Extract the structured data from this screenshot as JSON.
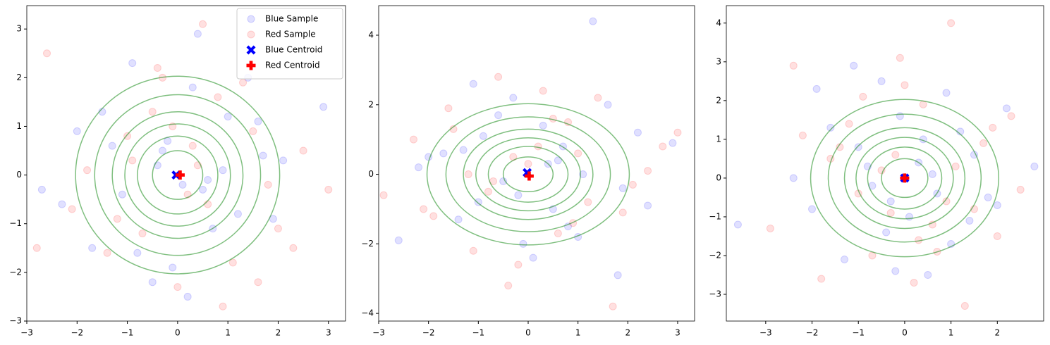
{
  "chart_data": [
    {
      "type": "scatter",
      "legend": "upper right",
      "xlim": [
        -3,
        3.34
      ],
      "ylim": [
        -3,
        3.48
      ],
      "xticks": [
        {
          "value": -3,
          "label": "−3"
        },
        {
          "value": -2,
          "label": "−2"
        },
        {
          "value": -1,
          "label": "−1"
        },
        0,
        1,
        2,
        3
      ],
      "yticks": [
        {
          "value": -3,
          "label": "−3"
        },
        {
          "value": -2,
          "label": "−2"
        },
        {
          "value": -1,
          "label": "−1"
        },
        0,
        1,
        2,
        3
      ],
      "contour_radii": [
        0.5,
        0.8,
        1.05,
        1.3,
        1.65,
        2.03
      ],
      "contour_color": "green",
      "series": [
        {
          "name": "Blue Sample",
          "color": "blue",
          "marker": "o",
          "alpha": 0.12,
          "x": [
            -0.3,
            1.2,
            -1.5,
            0.4,
            2.1,
            -0.8,
            0.1,
            -2.0,
            1.6,
            -0.5,
            0.9,
            -1.1,
            0.3,
            2.9,
            -2.3,
            0.7,
            -0.2,
            1.4,
            -1.7,
            0.5,
            -0.9,
            1.9,
            -0.4,
            0.2,
            -1.3,
            1.0,
            -2.7,
            0.6,
            -0.1,
            1.7
          ],
          "y": [
            0.5,
            -0.8,
            1.3,
            2.9,
            0.3,
            -1.6,
            -0.2,
            0.9,
            1.1,
            -2.2,
            0.1,
            -0.4,
            1.8,
            1.4,
            -0.6,
            -1.1,
            0.7,
            2.0,
            -1.5,
            -0.3,
            2.3,
            -0.9,
            0.2,
            -2.5,
            0.6,
            1.2,
            -0.3,
            -0.1,
            -1.9,
            0.4
          ]
        },
        {
          "name": "Red Sample",
          "color": "red",
          "marker": "o",
          "alpha": 0.12,
          "x": [
            0.8,
            -1.2,
            2.5,
            -0.4,
            1.1,
            -2.6,
            0.2,
            1.5,
            -0.7,
            0.5,
            -1.8,
            2.0,
            -0.1,
            3.0,
            0.9,
            -1.4,
            0.3,
            1.3,
            -0.9,
            -2.1,
            1.8,
            0.0,
            -0.5,
            2.3,
            -1.0,
            0.6,
            -0.3,
            1.6,
            -2.8,
            0.4
          ],
          "y": [
            1.6,
            -0.9,
            0.5,
            2.2,
            -1.8,
            2.5,
            -0.4,
            0.9,
            -1.2,
            3.1,
            0.1,
            -1.1,
            1.0,
            -0.3,
            -2.7,
            -1.6,
            0.6,
            1.9,
            0.3,
            -0.7,
            -0.2,
            -2.3,
            1.3,
            -1.5,
            0.8,
            -0.6,
            2.0,
            -2.2,
            -1.5,
            0.2
          ]
        },
        {
          "name": "Blue Centroid",
          "color": "blue",
          "marker": "X",
          "alpha": 1,
          "x": [
            -0.03
          ],
          "y": [
            0.0
          ]
        },
        {
          "name": "Red Centroid",
          "color": "red",
          "marker": "P",
          "alpha": 1,
          "x": [
            0.05
          ],
          "y": [
            0.0
          ]
        }
      ]
    },
    {
      "type": "scatter",
      "xlim": [
        -3,
        3.34
      ],
      "ylim": [
        -4.22,
        4.85
      ],
      "xticks": [
        {
          "value": -3,
          "label": "−3"
        },
        {
          "value": -2,
          "label": "−2"
        },
        {
          "value": -1,
          "label": "−1"
        },
        0,
        1,
        2,
        3
      ],
      "yticks": [
        {
          "value": -4,
          "label": "−4"
        },
        {
          "value": -2,
          "label": "−2"
        },
        0,
        2,
        4
      ],
      "contour_radii": [
        0.5,
        0.8,
        1.05,
        1.3,
        1.65,
        2.03
      ],
      "contour_color": "green",
      "series": [
        {
          "color": "blue",
          "marker": "o",
          "alpha": 0.12,
          "x": [
            -2.6,
            1.3,
            0.4,
            -1.0,
            2.2,
            -0.3,
            0.8,
            -1.7,
            1.9,
            -0.6,
            0.1,
            2.9,
            -2.2,
            0.5,
            -0.9,
            1.1,
            -0.2,
            1.6,
            -1.4,
            0.7,
            -0.5,
            2.4,
            -1.1,
            0.3,
            -2.0,
            1.0,
            -0.1,
            0.6,
            -1.3,
            1.8
          ],
          "y": [
            -1.9,
            4.4,
            0.3,
            -0.8,
            1.2,
            2.2,
            -1.5,
            0.6,
            -0.4,
            1.7,
            -2.4,
            0.9,
            0.2,
            -1.0,
            1.1,
            0.0,
            -0.6,
            2.0,
            -1.3,
            0.8,
            -0.2,
            -0.9,
            2.6,
            1.4,
            0.5,
            -1.8,
            -2.0,
            0.4,
            0.7,
            -2.9
          ]
        },
        {
          "color": "red",
          "marker": "o",
          "alpha": 0.12,
          "x": [
            -2.9,
            1.7,
            0.2,
            -1.5,
            2.7,
            -0.4,
            0.9,
            -2.3,
            1.4,
            -0.8,
            0.5,
            3.0,
            -1.9,
            0.0,
            -0.6,
            1.2,
            -1.1,
            2.1,
            -0.3,
            0.6,
            -1.6,
            2.4,
            -0.7,
            0.3,
            -2.1,
            1.0,
            -0.2,
            0.8,
            -1.2,
            1.9
          ],
          "y": [
            -0.6,
            -3.8,
            0.8,
            1.3,
            0.8,
            -3.2,
            -1.4,
            1.0,
            2.2,
            -0.5,
            1.6,
            1.2,
            -1.2,
            0.3,
            2.8,
            -0.8,
            -2.2,
            -0.3,
            0.5,
            -1.7,
            1.9,
            0.1,
            -0.2,
            2.4,
            -1.0,
            0.6,
            -2.6,
            1.5,
            0.0,
            -1.1
          ]
        },
        {
          "color": "blue",
          "marker": "X",
          "alpha": 1,
          "x": [
            -0.02
          ],
          "y": [
            0.05
          ]
        },
        {
          "color": "red",
          "marker": "P",
          "alpha": 1,
          "x": [
            0.02
          ],
          "y": [
            -0.05
          ]
        }
      ]
    },
    {
      "type": "scatter",
      "xlim": [
        -3.85,
        3.0
      ],
      "ylim": [
        -3.69,
        4.45
      ],
      "xticks": [
        {
          "value": -3,
          "label": "−3"
        },
        {
          "value": -2,
          "label": "−2"
        },
        {
          "value": -1,
          "label": "−1"
        },
        0,
        1,
        2
      ],
      "yticks": [
        {
          "value": -3,
          "label": "−3"
        },
        {
          "value": -2,
          "label": "−2"
        },
        {
          "value": -1,
          "label": "−1"
        },
        0,
        1,
        2,
        3,
        4
      ],
      "contour_radii": [
        0.5,
        0.8,
        1.05,
        1.3,
        1.65,
        2.03
      ],
      "contour_color": "green",
      "series": [
        {
          "color": "blue",
          "marker": "o",
          "alpha": 0.12,
          "x": [
            -3.6,
            -0.5,
            1.0,
            -1.1,
            0.4,
            2.2,
            -2.0,
            0.7,
            -0.2,
            1.5,
            -1.6,
            0.1,
            -0.8,
            1.8,
            -2.4,
            0.9,
            -0.4,
            1.2,
            -1.3,
            0.3,
            2.8,
            -0.7,
            0.5,
            -1.9,
            1.4,
            -0.1,
            -1.0,
            2.0,
            0.6,
            -0.3
          ],
          "y": [
            -1.2,
            2.5,
            -1.7,
            2.9,
            1.0,
            1.8,
            -0.8,
            -0.4,
            -2.4,
            0.6,
            1.3,
            -1.0,
            0.3,
            -0.5,
            0.0,
            2.2,
            -1.4,
            1.2,
            -2.1,
            0.4,
            0.3,
            -0.2,
            -2.5,
            2.3,
            -1.1,
            1.6,
            0.8,
            -0.7,
            0.1,
            -0.6
          ]
        },
        {
          "color": "red",
          "marker": "o",
          "alpha": 0.12,
          "x": [
            -2.4,
            1.0,
            -0.1,
            1.3,
            -1.6,
            0.6,
            2.3,
            -0.9,
            0.2,
            -2.9,
            1.7,
            -0.5,
            0.9,
            -1.2,
            2.0,
            -0.3,
            0.4,
            -1.8,
            1.1,
            -0.7,
            2.5,
            0.0,
            -1.4,
            1.5,
            -2.2,
            0.7,
            -0.2,
            1.9,
            -1.0,
            0.3
          ],
          "y": [
            2.9,
            4.0,
            3.1,
            -3.3,
            0.5,
            -1.2,
            1.6,
            2.1,
            -2.7,
            -1.3,
            0.9,
            0.2,
            -0.6,
            1.4,
            -1.5,
            -0.9,
            1.9,
            -2.6,
            0.3,
            -2.0,
            -0.3,
            2.4,
            0.8,
            -0.8,
            1.1,
            -1.9,
            0.6,
            1.3,
            -0.4,
            -1.6
          ]
        },
        {
          "color": "blue",
          "marker": "X",
          "alpha": 1,
          "x": [
            0.0
          ],
          "y": [
            0.0
          ]
        },
        {
          "color": "red",
          "marker": "P",
          "alpha": 1,
          "x": [
            0.0
          ],
          "y": [
            0.0
          ]
        }
      ]
    }
  ]
}
